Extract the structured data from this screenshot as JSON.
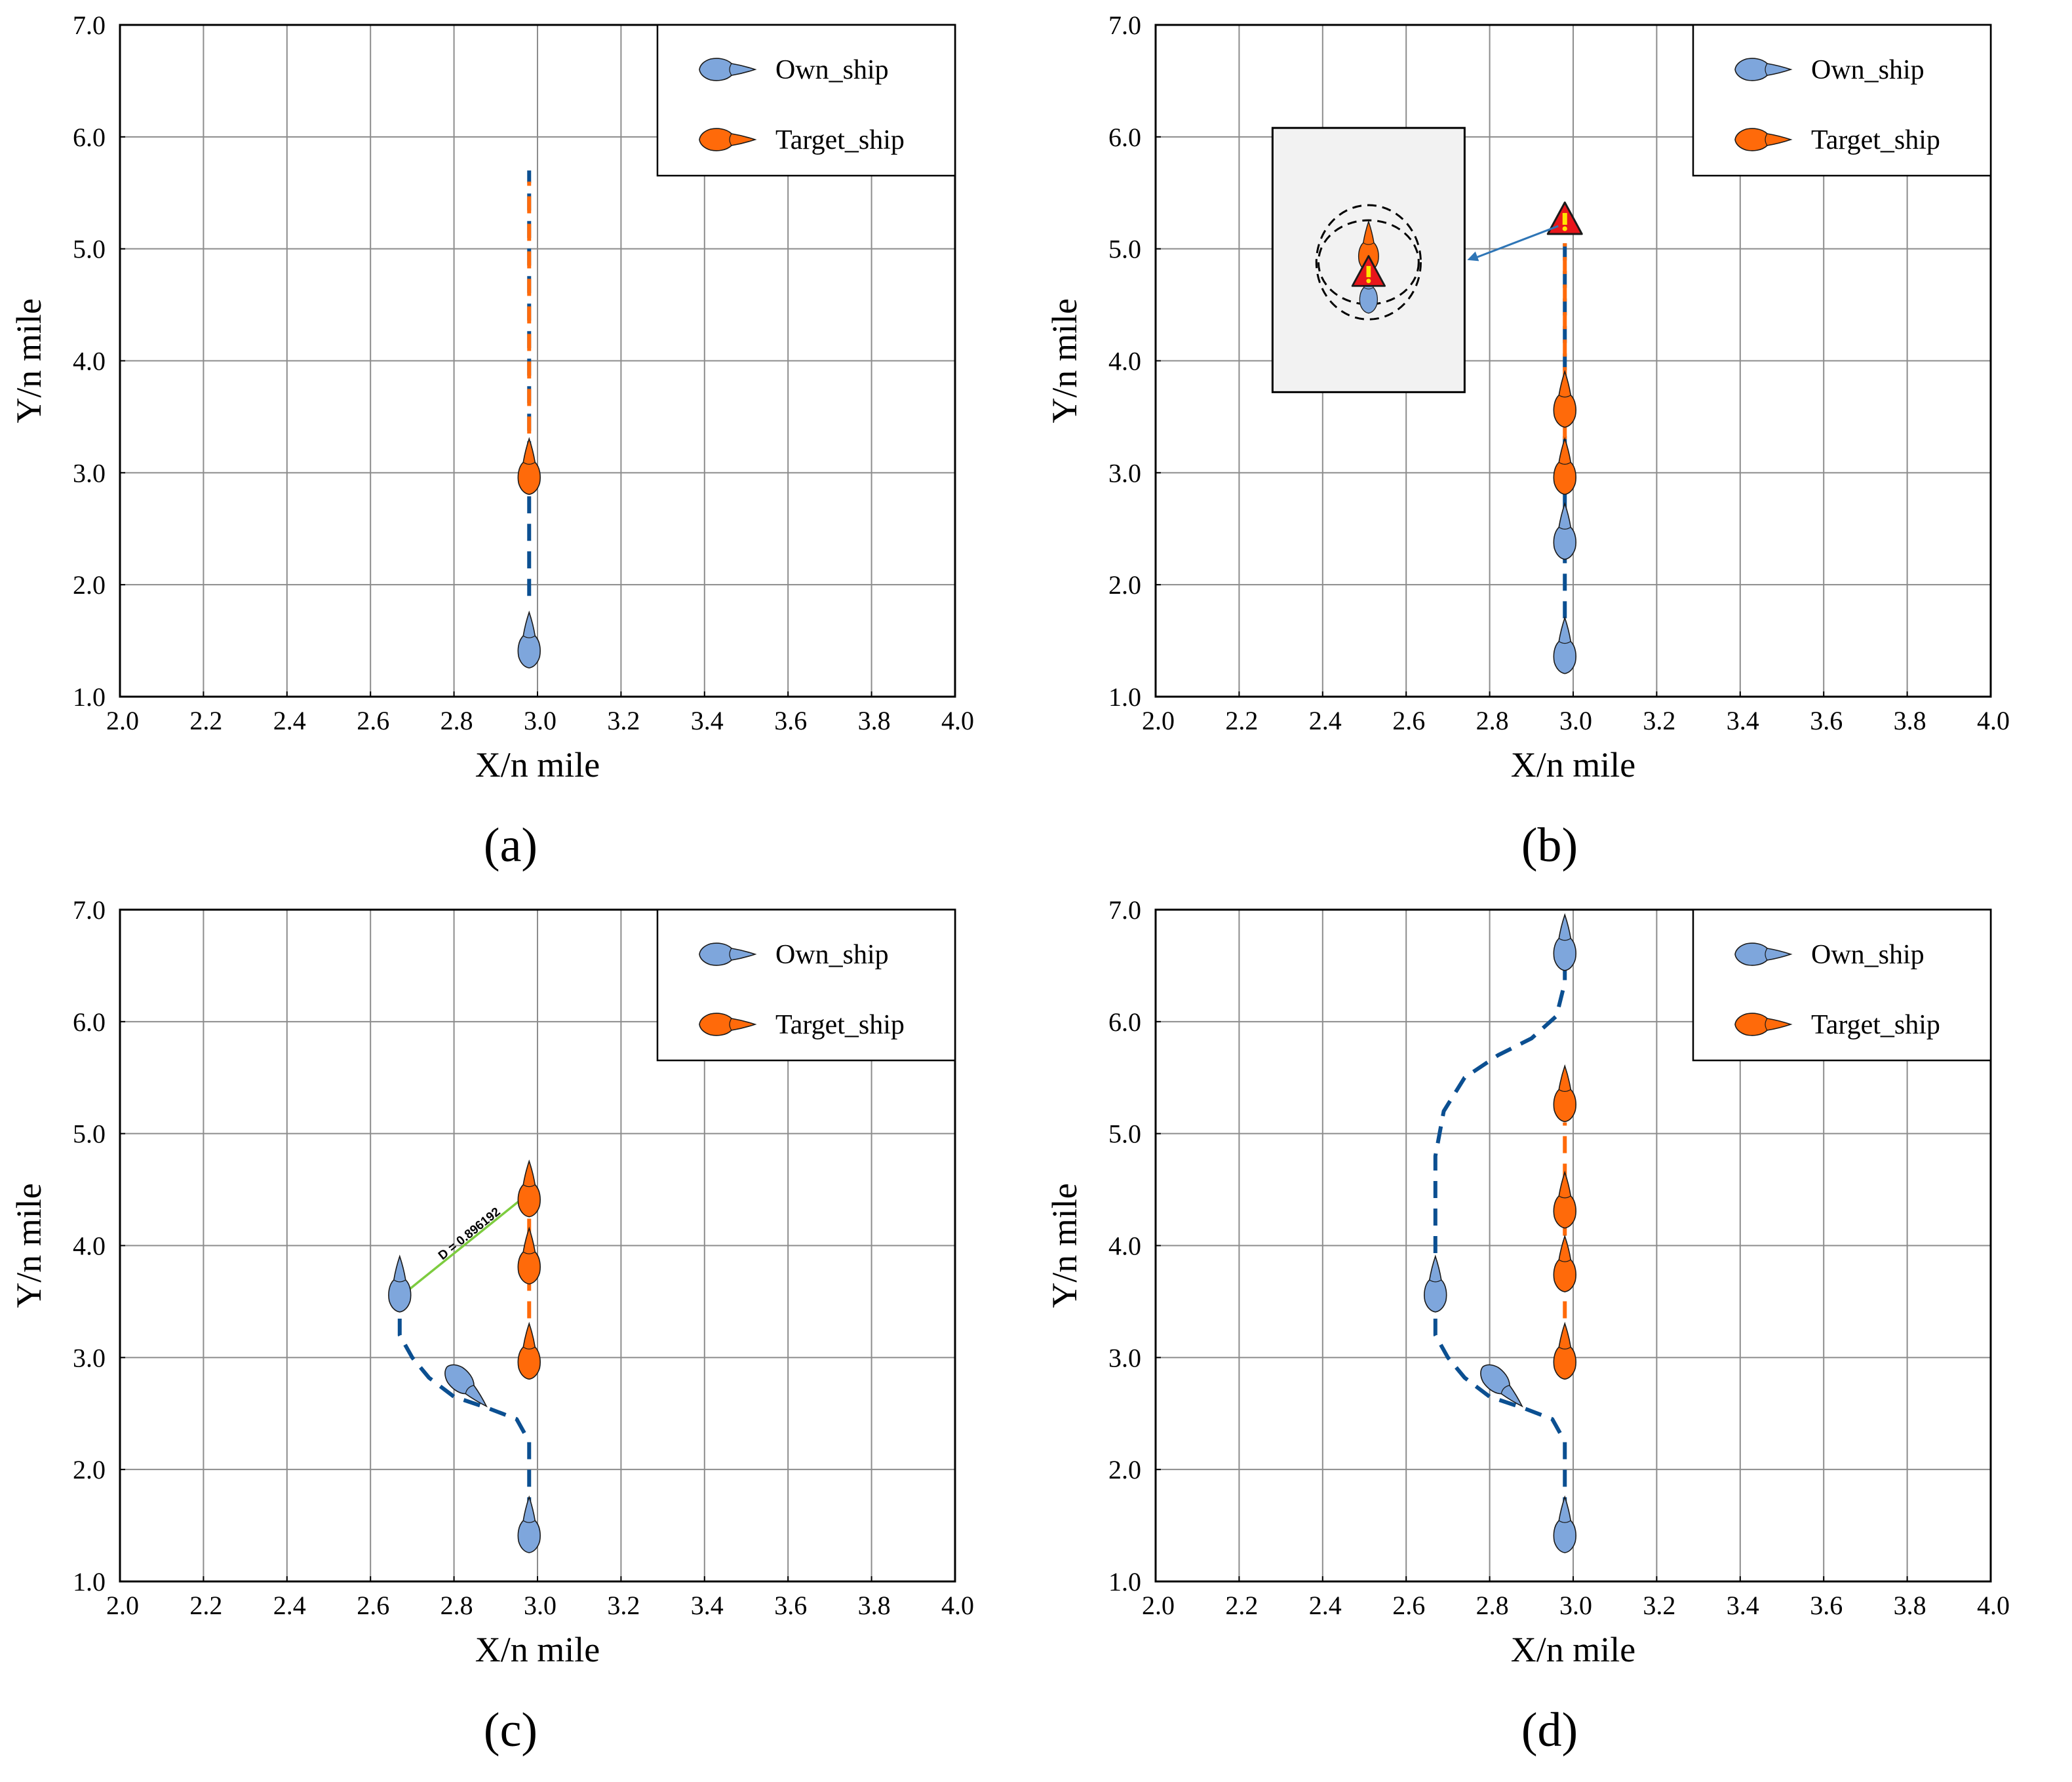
{
  "colors": {
    "own_ship": "#7ea6dc",
    "target_ship": "#ff6a0a",
    "own_path": "#0b4f91",
    "target_path": "#ff6a0a",
    "grid": "#8c8c8c",
    "distance_line": "#7dcc3f",
    "warning_fill": "#e8161b",
    "warning_mark": "#ffe500",
    "inset_bg": "#f2f2f2"
  },
  "chart_data": [
    {
      "id": "a",
      "caption": "(a)",
      "type": "scatter",
      "xlabel": "X/n mile",
      "ylabel": "Y/n mile",
      "xlim": [
        2.0,
        4.0
      ],
      "ylim": [
        1.0,
        7.0
      ],
      "xticks": [
        "2.0",
        "2.2",
        "2.4",
        "2.6",
        "2.8",
        "3.0",
        "3.2",
        "3.4",
        "3.6",
        "3.8",
        "4.0"
      ],
      "yticks": [
        "1.0",
        "2.0",
        "3.0",
        "4.0",
        "5.0",
        "6.0",
        "7.0"
      ],
      "grid": true,
      "legend": {
        "position": "top-right",
        "entries": [
          "Own_ship",
          "Target_ship"
        ]
      },
      "own_path": [
        [
          2.98,
          1.9
        ],
        [
          2.98,
          5.7
        ]
      ],
      "target_path": [
        [
          2.98,
          3.35
        ],
        [
          2.98,
          5.6
        ]
      ],
      "own_ships": [
        {
          "x": 2.98,
          "y": 1.45,
          "heading": 0
        }
      ],
      "target_ships": [
        {
          "x": 2.98,
          "y": 3.0,
          "heading": 0
        }
      ]
    },
    {
      "id": "b",
      "caption": "(b)",
      "type": "scatter",
      "xlabel": "X/n mile",
      "ylabel": "Y/n mile",
      "xlim": [
        2.0,
        4.0
      ],
      "ylim": [
        1.0,
        7.0
      ],
      "xticks": [
        "2.0",
        "2.2",
        "2.4",
        "2.6",
        "2.8",
        "3.0",
        "3.2",
        "3.4",
        "3.6",
        "3.8",
        "4.0"
      ],
      "yticks": [
        "1.0",
        "2.0",
        "3.0",
        "4.0",
        "5.0",
        "6.0",
        "7.0"
      ],
      "grid": true,
      "legend": {
        "position": "top-right",
        "entries": [
          "Own_ship",
          "Target_ship"
        ]
      },
      "own_path": [
        [
          2.98,
          1.7
        ],
        [
          2.98,
          5.2
        ]
      ],
      "target_path": [
        [
          2.98,
          3.3
        ],
        [
          2.98,
          5.05
        ]
      ],
      "own_ships": [
        {
          "x": 2.98,
          "y": 1.4,
          "heading": 0
        },
        {
          "x": 2.98,
          "y": 2.42,
          "heading": 0
        }
      ],
      "target_ships": [
        {
          "x": 2.98,
          "y": 3.0,
          "heading": 0
        },
        {
          "x": 2.98,
          "y": 3.6,
          "heading": 0
        }
      ],
      "warning": {
        "x": 2.98,
        "y": 5.25
      },
      "inset": {
        "x0": 2.28,
        "x1": 2.74,
        "y0": 3.72,
        "y1": 6.08,
        "center": [
          2.51,
          4.88
        ],
        "ellipses": [
          {
            "rx": 0.125,
            "ry": 1.02
          },
          {
            "rx": 0.12,
            "ry": 0.75
          }
        ],
        "own_ship": {
          "x": 2.51,
          "y": 4.58
        },
        "target_ship": {
          "x": 2.51,
          "y": 4.97
        },
        "warning": {
          "x": 2.51,
          "y": 4.78
        },
        "arrow_to": [
          2.74,
          4.9
        ]
      }
    },
    {
      "id": "c",
      "caption": "(c)",
      "type": "scatter",
      "xlabel": "X/n mile",
      "ylabel": "Y/n mile",
      "xlim": [
        2.0,
        4.0
      ],
      "ylim": [
        1.0,
        7.0
      ],
      "xticks": [
        "2.0",
        "2.2",
        "2.4",
        "2.6",
        "2.8",
        "3.0",
        "3.2",
        "3.4",
        "3.6",
        "3.8",
        "4.0"
      ],
      "yticks": [
        "1.0",
        "2.0",
        "3.0",
        "4.0",
        "5.0",
        "6.0",
        "7.0"
      ],
      "grid": true,
      "legend": {
        "position": "top-right",
        "entries": [
          "Own_ship",
          "Target_ship"
        ]
      },
      "own_path": [
        [
          2.98,
          1.6
        ],
        [
          2.98,
          2.05
        ],
        [
          2.98,
          2.25
        ],
        [
          2.95,
          2.45
        ],
        [
          2.88,
          2.55
        ],
        [
          2.8,
          2.65
        ],
        [
          2.74,
          2.82
        ],
        [
          2.7,
          3.0
        ],
        [
          2.67,
          3.2
        ],
        [
          2.67,
          3.4
        ]
      ],
      "target_path": [
        [
          2.98,
          3.35
        ],
        [
          2.98,
          4.3
        ]
      ],
      "own_ships": [
        {
          "x": 2.98,
          "y": 1.45,
          "heading": 0
        },
        {
          "x": 2.82,
          "y": 2.78,
          "heading": 135
        },
        {
          "x": 2.67,
          "y": 3.6,
          "heading": 0
        }
      ],
      "target_ships": [
        {
          "x": 2.98,
          "y": 3.0,
          "heading": 0
        },
        {
          "x": 2.98,
          "y": 3.85,
          "heading": 0
        },
        {
          "x": 2.98,
          "y": 4.45,
          "heading": 0
        }
      ],
      "distance": {
        "from": [
          2.68,
          3.57
        ],
        "to": [
          2.98,
          4.47
        ],
        "label": "D = 0.896192"
      }
    },
    {
      "id": "d",
      "caption": "(d)",
      "type": "scatter",
      "xlabel": "X/n mile",
      "ylabel": "Y/n mile",
      "xlim": [
        2.0,
        4.0
      ],
      "ylim": [
        1.0,
        7.0
      ],
      "xticks": [
        "2.0",
        "2.2",
        "2.4",
        "2.6",
        "2.8",
        "3.0",
        "3.2",
        "3.4",
        "3.6",
        "3.8",
        "4.0"
      ],
      "yticks": [
        "1.0",
        "2.0",
        "3.0",
        "4.0",
        "5.0",
        "6.0",
        "7.0"
      ],
      "grid": true,
      "legend": {
        "position": "top-right",
        "entries": [
          "Own_ship",
          "Target_ship"
        ]
      },
      "own_path": [
        [
          2.98,
          1.6
        ],
        [
          2.98,
          2.05
        ],
        [
          2.98,
          2.25
        ],
        [
          2.95,
          2.45
        ],
        [
          2.88,
          2.55
        ],
        [
          2.8,
          2.65
        ],
        [
          2.74,
          2.82
        ],
        [
          2.7,
          3.0
        ],
        [
          2.67,
          3.2
        ],
        [
          2.67,
          3.4
        ],
        [
          2.67,
          3.8
        ],
        [
          2.67,
          4.3
        ],
        [
          2.67,
          4.8
        ],
        [
          2.69,
          5.2
        ],
        [
          2.74,
          5.5
        ],
        [
          2.82,
          5.7
        ],
        [
          2.9,
          5.85
        ],
        [
          2.96,
          6.05
        ],
        [
          2.98,
          6.35
        ],
        [
          2.98,
          6.55
        ]
      ],
      "target_path": [
        [
          2.98,
          3.35
        ],
        [
          2.98,
          5.1
        ]
      ],
      "own_ships": [
        {
          "x": 2.98,
          "y": 1.45,
          "heading": 0
        },
        {
          "x": 2.82,
          "y": 2.78,
          "heading": 135
        },
        {
          "x": 2.67,
          "y": 3.6,
          "heading": 0
        },
        {
          "x": 2.98,
          "y": 6.65,
          "heading": 0
        }
      ],
      "target_ships": [
        {
          "x": 2.98,
          "y": 3.0,
          "heading": 0
        },
        {
          "x": 2.98,
          "y": 3.78,
          "heading": 0
        },
        {
          "x": 2.98,
          "y": 4.35,
          "heading": 0
        },
        {
          "x": 2.98,
          "y": 5.3,
          "heading": 0
        }
      ]
    }
  ]
}
